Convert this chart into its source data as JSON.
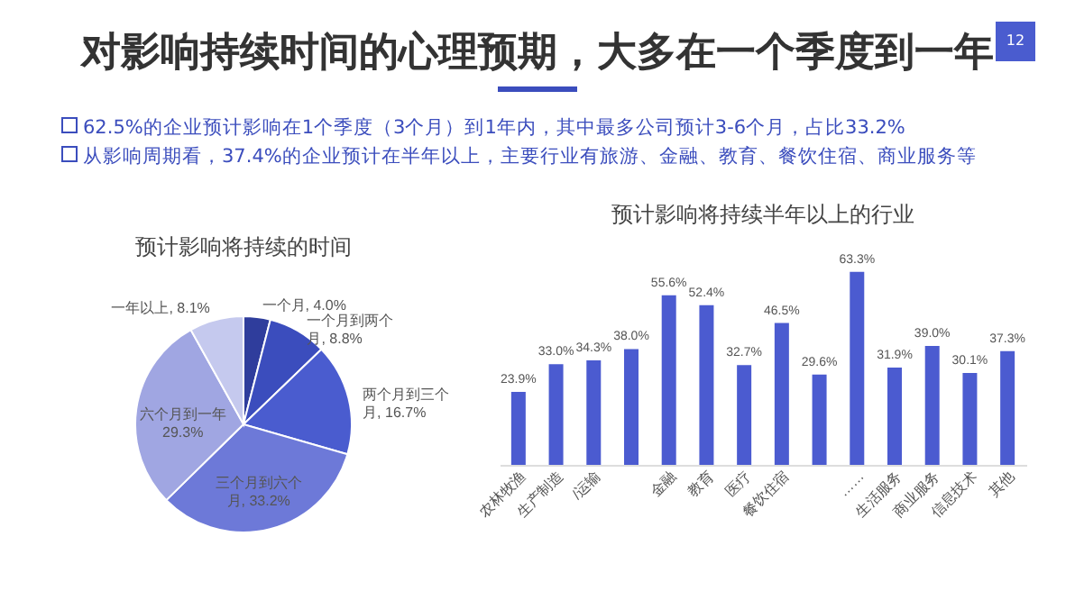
{
  "chart_data": [
    {
      "type": "pie",
      "title": "预计影响将持续的时间",
      "annotations": [
        "对影响持续时间的心理预期，大多在一个季度到一年",
        "62.5%的企业预计影响在1个季度（3个月）到1年内，其中最多公司预计3-6个月，占比33.2%",
        "从影响周期看，37.4%的企业预计在半年以上，主要行业有旅游、金融、教育、餐饮住宿、商业服务等",
        "12"
      ],
      "categories": [
        "一个月",
        "一个月到两个月",
        "两个月到三个月",
        "三个月到六个月",
        "六个月到一年",
        "一年以上"
      ],
      "values": [
        4.0,
        8.8,
        16.7,
        33.2,
        29.3,
        8.1
      ],
      "colors": [
        "#2f3d9c",
        "#3b4dbd",
        "#4a5ccf",
        "#6d79d8",
        "#a0a6e2",
        "#c5c9ee"
      ],
      "value_labels": [
        "4.0%",
        "8.8%",
        "16.7%",
        "33.2%",
        "29.3%",
        "8.1%"
      ],
      "legend": false
    },
    {
      "type": "bar",
      "title": "预计影响将持续半年以上的行业",
      "categories": [
        "农林牧渔",
        "生产制造",
        "/运输",
        null,
        "金融",
        "教育",
        "医疗",
        "餐饮住宿",
        null,
        "……",
        "生活服务",
        "商业服务",
        "信息技术",
        "其他"
      ],
      "values": [
        23.9,
        33.0,
        34.3,
        38.0,
        55.6,
        52.4,
        32.7,
        46.5,
        29.6,
        63.3,
        31.9,
        39.0,
        30.1,
        37.3
      ],
      "color": "#4b5bd0",
      "value_labels": [
        "23.9%",
        "33.0%",
        "34.3%",
        "38.0%",
        "55.6%",
        "52.4%",
        "32.7%",
        "46.5%",
        "29.6%",
        "63.3%",
        "31.9%",
        "39.0%",
        "30.1%",
        "37.3%"
      ],
      "tick_labels": "x",
      "grid": false
    }
  ]
}
